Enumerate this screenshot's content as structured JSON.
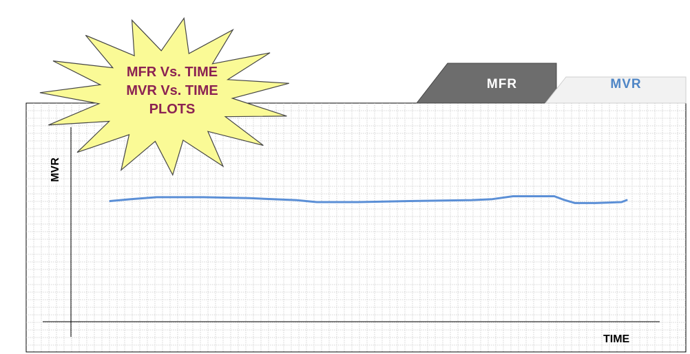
{
  "tabs": [
    {
      "label": "MFR",
      "color": "#ffffff",
      "background": "#6d6d6d"
    },
    {
      "label": "MVR",
      "color": "#4f86c6",
      "background": "#f2f2f2"
    }
  ],
  "callout": {
    "lines": [
      "MFR Vs. TIME",
      "MVR Vs. TIME",
      "PLOTS"
    ],
    "text_color": "#8b2252",
    "fill": "#fafa96"
  },
  "chart_data": {
    "type": "line",
    "xlabel": "TIME",
    "ylabel": "MVR",
    "series": [
      {
        "color": "#5b8fd6",
        "values": [
          [
            0,
            0.62
          ],
          [
            0.04,
            0.63
          ],
          [
            0.09,
            0.64
          ],
          [
            0.18,
            0.64
          ],
          [
            0.27,
            0.635
          ],
          [
            0.36,
            0.625
          ],
          [
            0.4,
            0.615
          ],
          [
            0.48,
            0.615
          ],
          [
            0.58,
            0.62
          ],
          [
            0.7,
            0.625
          ],
          [
            0.74,
            0.63
          ],
          [
            0.78,
            0.645
          ],
          [
            0.86,
            0.645
          ],
          [
            0.88,
            0.625
          ],
          [
            0.9,
            0.61
          ],
          [
            0.94,
            0.61
          ],
          [
            0.99,
            0.615
          ],
          [
            1.0,
            0.625
          ]
        ]
      }
    ],
    "grid": true
  }
}
